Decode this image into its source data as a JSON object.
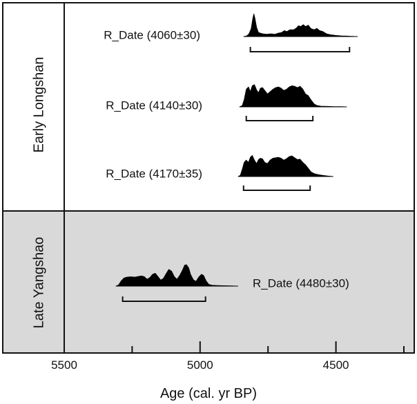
{
  "chart_data": {
    "type": "area",
    "title": "",
    "xlabel": "Age (cal. yr BP)",
    "ylabel": "",
    "xlim": [
      5500,
      4250
    ],
    "x_reversed": true,
    "xticks": [
      5500,
      5000,
      4500
    ],
    "xtick_labels": [
      "5500",
      "5000",
      "4500"
    ],
    "grid": false,
    "colors": {
      "fill": "#000000",
      "late_panel_bg": "#d9d9d9",
      "early_panel_bg": "#ffffff",
      "axis": "#111111"
    },
    "groups": [
      {
        "name": "Early Longshan",
        "background": "#ffffff",
        "series": [
          {
            "label": "R_Date (4060±30)",
            "range_95": [
              4815,
              4450
            ],
            "density": [
              [
                4840,
                0
              ],
              [
                4828,
                0.03
              ],
              [
                4820,
                0.12
              ],
              [
                4812,
                0.35
              ],
              [
                4806,
                0.8
              ],
              [
                4802,
                1.0
              ],
              [
                4798,
                0.8
              ],
              [
                4792,
                0.4
              ],
              [
                4785,
                0.18
              ],
              [
                4770,
                0.12
              ],
              [
                4755,
                0.1
              ],
              [
                4740,
                0.12
              ],
              [
                4725,
                0.1
              ],
              [
                4712,
                0.15
              ],
              [
                4700,
                0.18
              ],
              [
                4690,
                0.26
              ],
              [
                4680,
                0.22
              ],
              [
                4670,
                0.3
              ],
              [
                4655,
                0.3
              ],
              [
                4645,
                0.38
              ],
              [
                4638,
                0.48
              ],
              [
                4630,
                0.44
              ],
              [
                4620,
                0.52
              ],
              [
                4612,
                0.44
              ],
              [
                4602,
                0.5
              ],
              [
                4592,
                0.35
              ],
              [
                4580,
                0.3
              ],
              [
                4570,
                0.36
              ],
              [
                4560,
                0.26
              ],
              [
                4548,
                0.22
              ],
              [
                4535,
                0.12
              ],
              [
                4520,
                0.08
              ],
              [
                4500,
                0.05
              ],
              [
                4480,
                0.03
              ],
              [
                4460,
                0.02
              ],
              [
                4440,
                0.01
              ],
              [
                4420,
                0
              ]
            ]
          },
          {
            "label": "R_Date (4140±30)",
            "range_95": [
              4830,
              4585
            ],
            "density": [
              [
                4855,
                0
              ],
              [
                4845,
                0.05
              ],
              [
                4838,
                0.3
              ],
              [
                4830,
                0.75
              ],
              [
                4822,
                0.85
              ],
              [
                4815,
                0.65
              ],
              [
                4808,
                0.9
              ],
              [
                4800,
                0.95
              ],
              [
                4792,
                0.72
              ],
              [
                4785,
                0.6
              ],
              [
                4778,
                0.8
              ],
              [
                4770,
                0.82
              ],
              [
                4762,
                0.7
              ],
              [
                4752,
                0.55
              ],
              [
                4742,
                0.65
              ],
              [
                4732,
                0.75
              ],
              [
                4722,
                0.82
              ],
              [
                4712,
                0.85
              ],
              [
                4702,
                0.8
              ],
              [
                4692,
                0.7
              ],
              [
                4682,
                0.75
              ],
              [
                4672,
                0.85
              ],
              [
                4662,
                0.9
              ],
              [
                4652,
                0.88
              ],
              [
                4642,
                0.82
              ],
              [
                4632,
                0.88
              ],
              [
                4622,
                0.76
              ],
              [
                4612,
                0.55
              ],
              [
                4602,
                0.48
              ],
              [
                4592,
                0.3
              ],
              [
                4580,
                0.12
              ],
              [
                4570,
                0.06
              ],
              [
                4555,
                0.03
              ],
              [
                4530,
                0.02
              ],
              [
                4505,
                0.01
              ],
              [
                4480,
                0.01
              ],
              [
                4460,
                0
              ]
            ]
          },
          {
            "label": "R_Date (4170±35)",
            "range_95": [
              4840,
              4595
            ],
            "density": [
              [
                4860,
                0
              ],
              [
                4852,
                0.05
              ],
              [
                4845,
                0.3
              ],
              [
                4838,
                0.6
              ],
              [
                4830,
                0.7
              ],
              [
                4822,
                0.6
              ],
              [
                4815,
                0.82
              ],
              [
                4808,
                0.9
              ],
              [
                4800,
                0.7
              ],
              [
                4792,
                0.55
              ],
              [
                4785,
                0.72
              ],
              [
                4778,
                0.78
              ],
              [
                4770,
                0.75
              ],
              [
                4762,
                0.6
              ],
              [
                4752,
                0.55
              ],
              [
                4742,
                0.7
              ],
              [
                4732,
                0.78
              ],
              [
                4722,
                0.8
              ],
              [
                4712,
                0.82
              ],
              [
                4702,
                0.78
              ],
              [
                4692,
                0.7
              ],
              [
                4682,
                0.76
              ],
              [
                4672,
                0.85
              ],
              [
                4662,
                0.88
              ],
              [
                4652,
                0.8
              ],
              [
                4642,
                0.72
              ],
              [
                4632,
                0.74
              ],
              [
                4622,
                0.6
              ],
              [
                4612,
                0.5
              ],
              [
                4602,
                0.35
              ],
              [
                4592,
                0.2
              ],
              [
                4580,
                0.12
              ],
              [
                4565,
                0.08
              ],
              [
                4550,
                0.05
              ],
              [
                4535,
                0.03
              ],
              [
                4520,
                0.01
              ],
              [
                4510,
                0
              ]
            ]
          }
        ]
      },
      {
        "name": "Late Yangshao",
        "background": "#d9d9d9",
        "series": [
          {
            "label": "R_Date (4480±30)",
            "range_95": [
              5285,
              4980
            ],
            "density": [
              [
                5310,
                0
              ],
              [
                5300,
                0.05
              ],
              [
                5290,
                0.25
              ],
              [
                5280,
                0.38
              ],
              [
                5270,
                0.42
              ],
              [
                5255,
                0.44
              ],
              [
                5240,
                0.42
              ],
              [
                5230,
                0.45
              ],
              [
                5215,
                0.48
              ],
              [
                5205,
                0.44
              ],
              [
                5195,
                0.32
              ],
              [
                5185,
                0.4
              ],
              [
                5175,
                0.55
              ],
              [
                5165,
                0.6
              ],
              [
                5155,
                0.45
              ],
              [
                5145,
                0.28
              ],
              [
                5135,
                0.36
              ],
              [
                5125,
                0.58
              ],
              [
                5115,
                0.78
              ],
              [
                5105,
                0.7
              ],
              [
                5095,
                0.45
              ],
              [
                5085,
                0.32
              ],
              [
                5075,
                0.5
              ],
              [
                5065,
                0.74
              ],
              [
                5057,
                0.98
              ],
              [
                5050,
                1.0
              ],
              [
                5042,
                0.85
              ],
              [
                5035,
                0.55
              ],
              [
                5025,
                0.3
              ],
              [
                5015,
                0.22
              ],
              [
                5005,
                0.42
              ],
              [
                4995,
                0.55
              ],
              [
                4987,
                0.5
              ],
              [
                4978,
                0.25
              ],
              [
                4968,
                0.08
              ],
              [
                4955,
                0.04
              ],
              [
                4935,
                0.03
              ],
              [
                4910,
                0.02
              ],
              [
                4885,
                0.01
              ],
              [
                4860,
                0
              ]
            ]
          }
        ]
      }
    ]
  }
}
